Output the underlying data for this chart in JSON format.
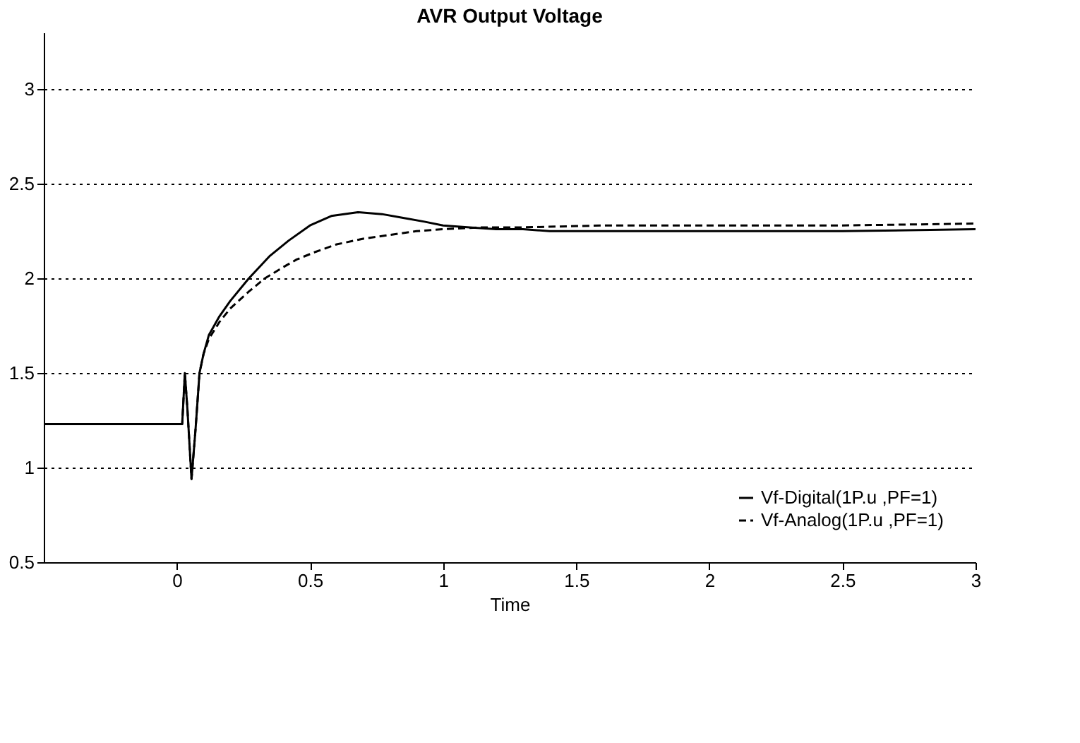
{
  "chart_data": {
    "type": "line",
    "title": "AVR Output Voltage",
    "xlabel": "Time",
    "xlim": [
      -0.5,
      3
    ],
    "xticks": [
      0,
      0.5,
      1,
      1.5,
      2,
      2.5,
      3
    ],
    "ylim": [
      0.5,
      3.3
    ],
    "yticks": [
      0.5,
      1,
      1.5,
      2,
      2.5,
      3
    ],
    "grid": "y",
    "legend": "bottom right",
    "marker": "none",
    "series": [
      {
        "name": "Vf-Digital(1P.u ,PF=1)",
        "color": "#000000",
        "line_style": "solid",
        "x": [
          -0.5,
          0.0,
          0.02,
          0.03,
          0.04,
          0.055,
          0.07,
          0.085,
          0.1,
          0.12,
          0.16,
          0.2,
          0.27,
          0.35,
          0.42,
          0.5,
          0.58,
          0.68,
          0.77,
          0.85,
          0.93,
          1.0,
          1.1,
          1.2,
          1.3,
          1.4,
          2.0,
          2.5,
          3.0
        ],
        "values": [
          1.23,
          1.23,
          1.23,
          1.5,
          1.3,
          0.94,
          1.2,
          1.5,
          1.6,
          1.7,
          1.8,
          1.88,
          2.0,
          2.12,
          2.2,
          2.28,
          2.33,
          2.35,
          2.34,
          2.32,
          2.3,
          2.28,
          2.27,
          2.26,
          2.26,
          2.25,
          2.25,
          2.25,
          2.26
        ]
      },
      {
        "name": "Vf-Analog(1P.u ,PF=1)",
        "color": "#000000",
        "line_style": "dashed",
        "x": [
          -0.5,
          0.0,
          0.02,
          0.03,
          0.04,
          0.055,
          0.07,
          0.085,
          0.1,
          0.12,
          0.16,
          0.2,
          0.27,
          0.33,
          0.4,
          0.45,
          0.52,
          0.6,
          0.7,
          0.8,
          0.9,
          1.0,
          1.15,
          1.3,
          1.6,
          2.0,
          2.5,
          3.0
        ],
        "values": [
          1.23,
          1.23,
          1.23,
          1.5,
          1.3,
          0.94,
          1.2,
          1.5,
          1.6,
          1.68,
          1.77,
          1.84,
          1.93,
          2.0,
          2.06,
          2.1,
          2.14,
          2.18,
          2.21,
          2.23,
          2.25,
          2.26,
          2.27,
          2.27,
          2.28,
          2.28,
          2.28,
          2.29
        ]
      }
    ]
  }
}
